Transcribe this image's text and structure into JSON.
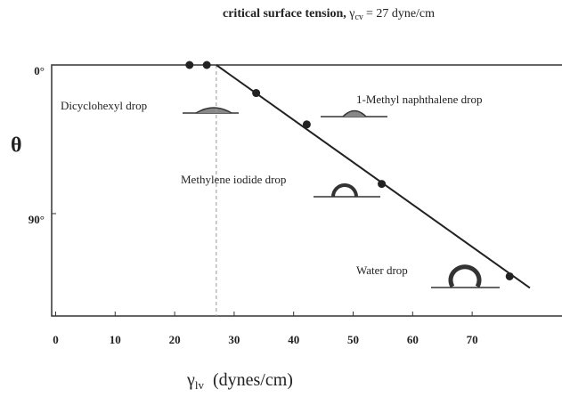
{
  "chart_data": {
    "type": "scatter",
    "title": "critical surface tension,",
    "title_symbol": "γ",
    "title_subscript": "cv",
    "title_value": "= 27 dyne/cm",
    "x_label_symbol": "γ",
    "x_label_subscript": "lv",
    "x_label": "(dynes/cm)",
    "y_label": "θ",
    "x": [
      22.5,
      25.4,
      33.7,
      42.2,
      54.8,
      76.3
    ],
    "values": [
      0,
      0,
      17,
      36,
      72,
      128
    ],
    "fit_line": {
      "x": [
        27,
        79.7
      ],
      "y": [
        0,
        135
      ]
    },
    "critical_x": 27,
    "annotations": [
      "Dicyclohexyl drop",
      "1-Methyl naphthalene drop",
      "Methylene iodide drop",
      "Water drop"
    ],
    "xlim": [
      -0.67,
      85.1
    ],
    "ylim": [
      0,
      152
    ],
    "xticks": [
      0,
      10,
      20,
      30,
      40,
      50,
      60,
      70
    ],
    "yticks": [
      {
        "value": 0,
        "label": "0°"
      },
      {
        "value": 90,
        "label": "90°"
      }
    ],
    "color": "#222222"
  }
}
